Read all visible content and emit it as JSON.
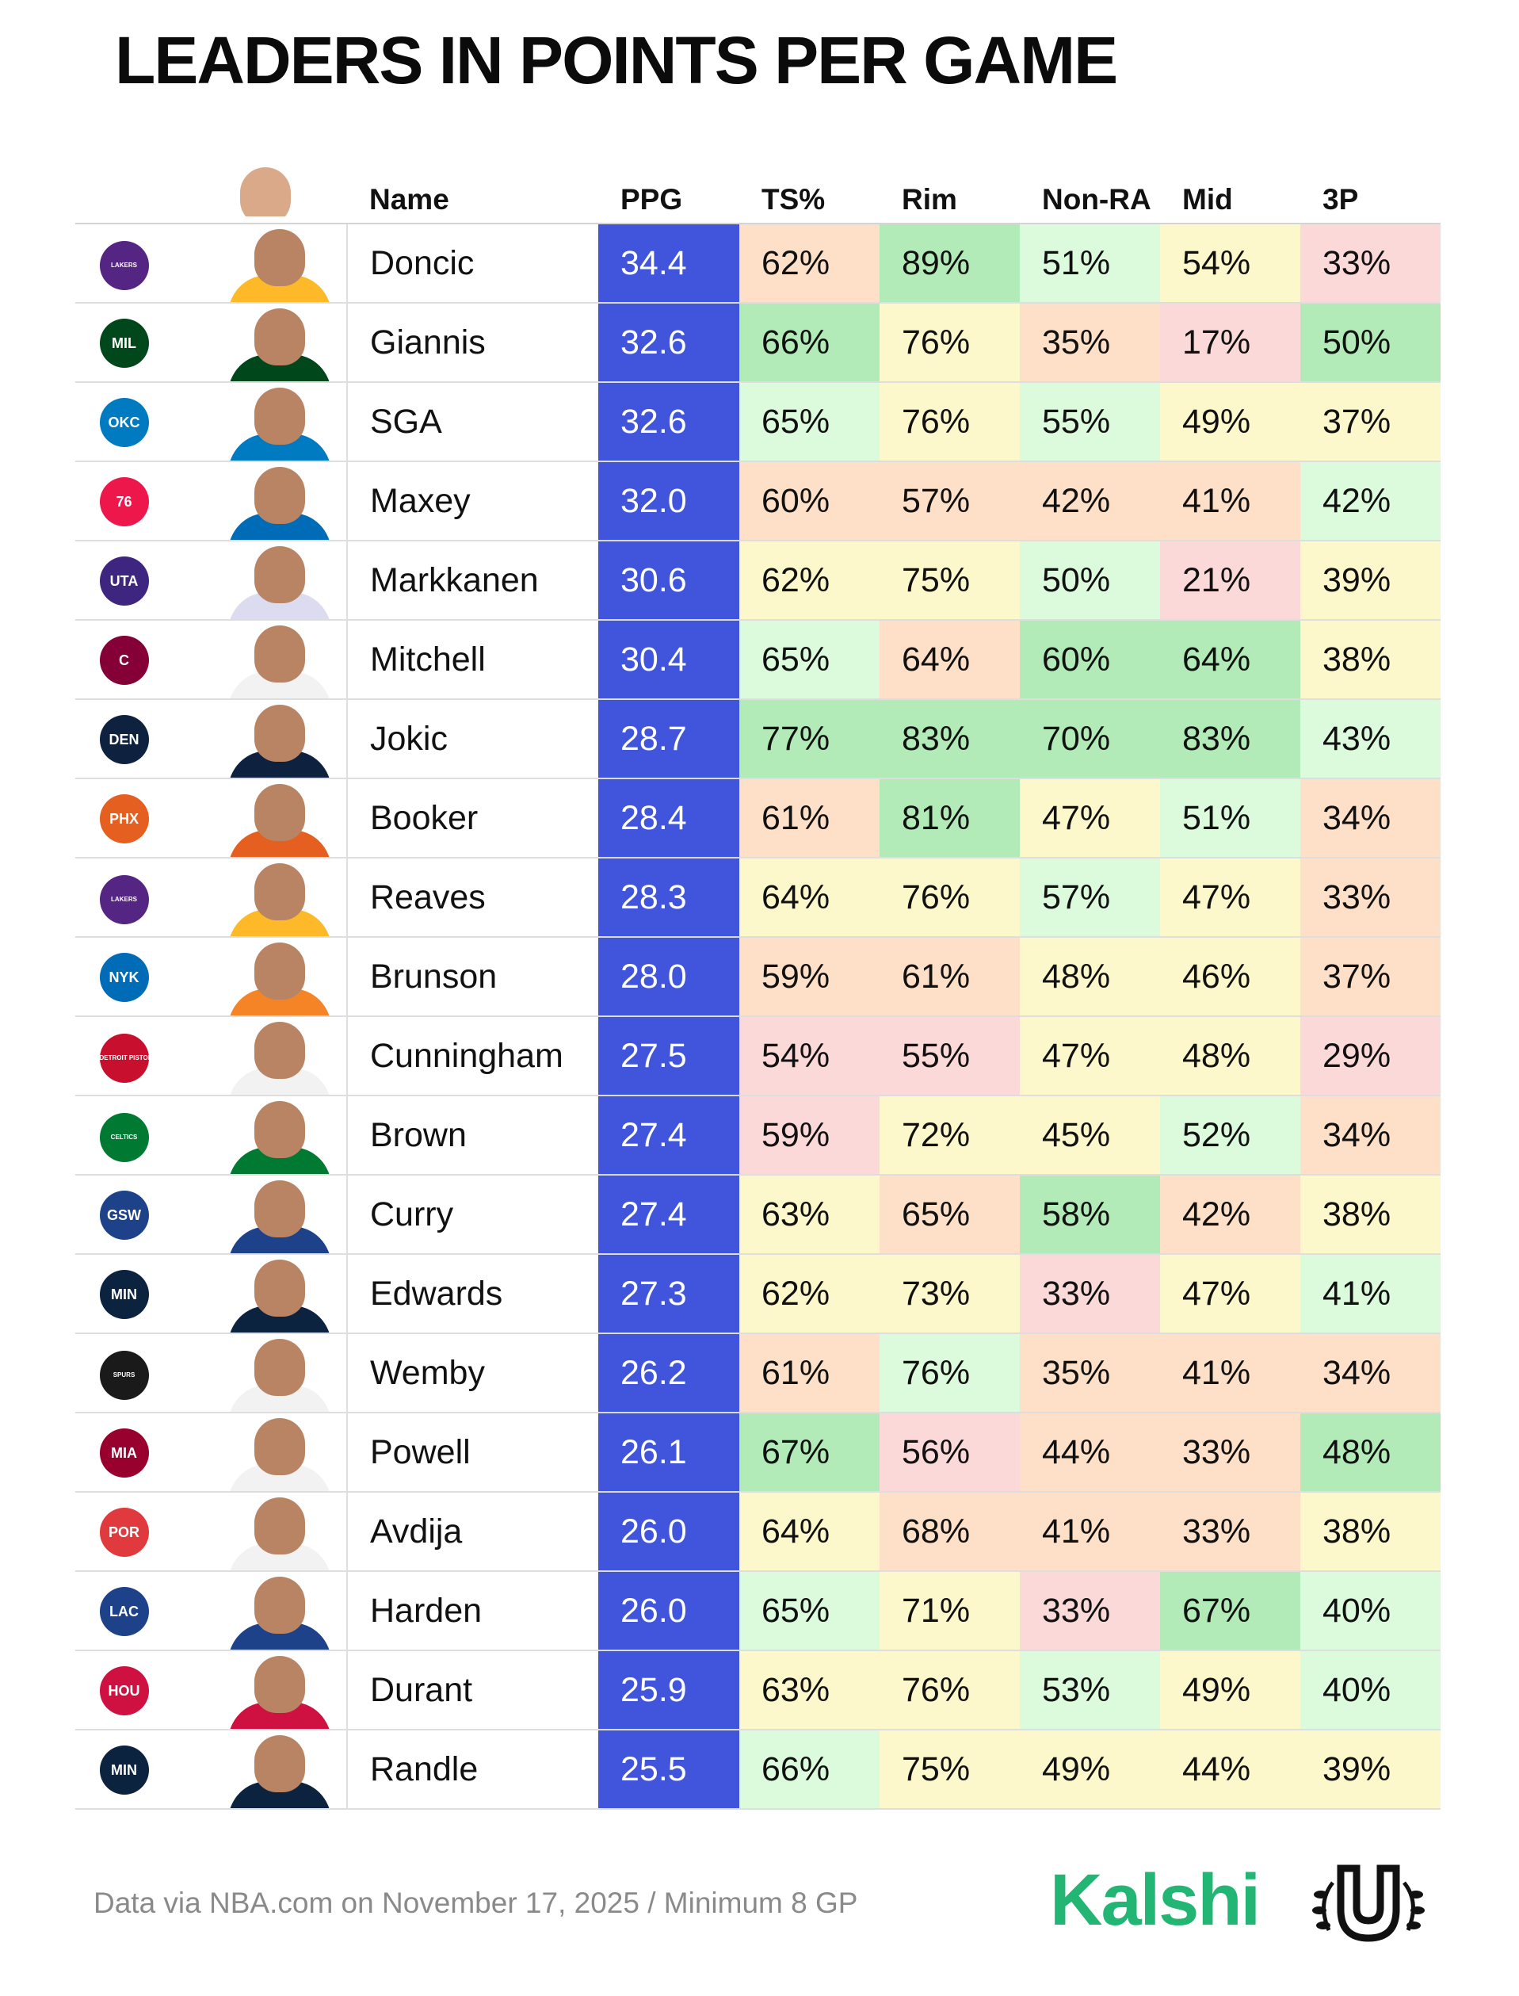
{
  "title": "LEADERS IN POINTS PER GAME",
  "columns": [
    "Name",
    "PPG",
    "TS%",
    "Rim",
    "Non-RA",
    "Mid",
    "3P"
  ],
  "colors": {
    "ppg": "#4055dc",
    "scale": {
      "dark_green": "#b2ebb8",
      "light_green": "#dcfadc",
      "yellow": "#fdf7cc",
      "orange": "#fde0c7",
      "pink": "#fbd9d9"
    },
    "brand": "#22b573"
  },
  "chart_data": {
    "type": "table",
    "title": "LEADERS IN POINTS PER GAME",
    "columns": [
      "Name",
      "PPG",
      "TS%",
      "Rim",
      "Non-RA",
      "Mid",
      "3P"
    ],
    "rows": [
      {
        "team": "Lakers",
        "name": "Doncic",
        "ppg": "34.4",
        "ts": "62%",
        "rim": "89%",
        "nonra": "51%",
        "mid": "54%",
        "three": "33%"
      },
      {
        "team": "Bucks",
        "name": "Giannis",
        "ppg": "32.6",
        "ts": "66%",
        "rim": "76%",
        "nonra": "35%",
        "mid": "17%",
        "three": "50%"
      },
      {
        "team": "Thunder",
        "name": "SGA",
        "ppg": "32.6",
        "ts": "65%",
        "rim": "76%",
        "nonra": "55%",
        "mid": "49%",
        "three": "37%"
      },
      {
        "team": "76ers",
        "name": "Maxey",
        "ppg": "32.0",
        "ts": "60%",
        "rim": "57%",
        "nonra": "42%",
        "mid": "41%",
        "three": "42%"
      },
      {
        "team": "Jazz",
        "name": "Markkanen",
        "ppg": "30.6",
        "ts": "62%",
        "rim": "75%",
        "nonra": "50%",
        "mid": "21%",
        "three": "39%"
      },
      {
        "team": "Cavaliers",
        "name": "Mitchell",
        "ppg": "30.4",
        "ts": "65%",
        "rim": "64%",
        "nonra": "60%",
        "mid": "64%",
        "three": "38%"
      },
      {
        "team": "Nuggets",
        "name": "Jokic",
        "ppg": "28.7",
        "ts": "77%",
        "rim": "83%",
        "nonra": "70%",
        "mid": "83%",
        "three": "43%"
      },
      {
        "team": "Suns",
        "name": "Booker",
        "ppg": "28.4",
        "ts": "61%",
        "rim": "81%",
        "nonra": "47%",
        "mid": "51%",
        "three": "34%"
      },
      {
        "team": "Lakers",
        "name": "Reaves",
        "ppg": "28.3",
        "ts": "64%",
        "rim": "76%",
        "nonra": "57%",
        "mid": "47%",
        "three": "33%"
      },
      {
        "team": "Knicks",
        "name": "Brunson",
        "ppg": "28.0",
        "ts": "59%",
        "rim": "61%",
        "nonra": "48%",
        "mid": "46%",
        "three": "37%"
      },
      {
        "team": "Pistons",
        "name": "Cunningham",
        "ppg": "27.5",
        "ts": "54%",
        "rim": "55%",
        "nonra": "47%",
        "mid": "48%",
        "three": "29%"
      },
      {
        "team": "Celtics",
        "name": "Brown",
        "ppg": "27.4",
        "ts": "59%",
        "rim": "72%",
        "nonra": "45%",
        "mid": "52%",
        "three": "34%"
      },
      {
        "team": "Warriors",
        "name": "Curry",
        "ppg": "27.4",
        "ts": "63%",
        "rim": "65%",
        "nonra": "58%",
        "mid": "42%",
        "three": "38%"
      },
      {
        "team": "Timberwolves",
        "name": "Edwards",
        "ppg": "27.3",
        "ts": "62%",
        "rim": "73%",
        "nonra": "33%",
        "mid": "47%",
        "three": "41%"
      },
      {
        "team": "Spurs",
        "name": "Wemby",
        "ppg": "26.2",
        "ts": "61%",
        "rim": "76%",
        "nonra": "35%",
        "mid": "41%",
        "three": "34%"
      },
      {
        "team": "Heat",
        "name": "Powell",
        "ppg": "26.1",
        "ts": "67%",
        "rim": "56%",
        "nonra": "44%",
        "mid": "33%",
        "three": "48%"
      },
      {
        "team": "Trail Blazers",
        "name": "Avdija",
        "ppg": "26.0",
        "ts": "64%",
        "rim": "68%",
        "nonra": "41%",
        "mid": "33%",
        "three": "38%"
      },
      {
        "team": "Clippers",
        "name": "Harden",
        "ppg": "26.0",
        "ts": "65%",
        "rim": "71%",
        "nonra": "33%",
        "mid": "67%",
        "three": "40%"
      },
      {
        "team": "Rockets",
        "name": "Durant",
        "ppg": "25.9",
        "ts": "63%",
        "rim": "76%",
        "nonra": "53%",
        "mid": "49%",
        "three": "40%"
      },
      {
        "team": "Timberwolves",
        "name": "Randle",
        "ppg": "25.5",
        "ts": "66%",
        "rim": "75%",
        "nonra": "49%",
        "mid": "44%",
        "three": "39%"
      }
    ],
    "cell_colors": [
      [
        "orange",
        "dark_green",
        "light_green",
        "yellow",
        "pink"
      ],
      [
        "dark_green",
        "yellow",
        "orange",
        "pink",
        "dark_green"
      ],
      [
        "light_green",
        "yellow",
        "light_green",
        "yellow",
        "yellow"
      ],
      [
        "orange",
        "orange",
        "orange",
        "orange",
        "light_green"
      ],
      [
        "yellow",
        "yellow",
        "light_green",
        "pink",
        "yellow"
      ],
      [
        "light_green",
        "orange",
        "dark_green",
        "dark_green",
        "yellow"
      ],
      [
        "dark_green",
        "dark_green",
        "dark_green",
        "dark_green",
        "light_green"
      ],
      [
        "orange",
        "dark_green",
        "yellow",
        "light_green",
        "orange"
      ],
      [
        "yellow",
        "yellow",
        "light_green",
        "yellow",
        "orange"
      ],
      [
        "orange",
        "orange",
        "yellow",
        "yellow",
        "orange"
      ],
      [
        "pink",
        "pink",
        "yellow",
        "yellow",
        "pink"
      ],
      [
        "pink",
        "yellow",
        "yellow",
        "light_green",
        "orange"
      ],
      [
        "yellow",
        "orange",
        "dark_green",
        "orange",
        "yellow"
      ],
      [
        "yellow",
        "yellow",
        "pink",
        "yellow",
        "light_green"
      ],
      [
        "orange",
        "light_green",
        "orange",
        "orange",
        "orange"
      ],
      [
        "dark_green",
        "pink",
        "orange",
        "orange",
        "dark_green"
      ],
      [
        "yellow",
        "orange",
        "orange",
        "orange",
        "yellow"
      ],
      [
        "light_green",
        "yellow",
        "pink",
        "dark_green",
        "light_green"
      ],
      [
        "yellow",
        "yellow",
        "light_green",
        "yellow",
        "light_green"
      ],
      [
        "light_green",
        "yellow",
        "yellow",
        "yellow",
        "yellow"
      ]
    ]
  },
  "team_logos": {
    "Lakers": {
      "icon": "lakers-logo-icon",
      "color": "#552583",
      "text": "LAKERS"
    },
    "Bucks": {
      "icon": "bucks-logo-icon",
      "color": "#00471b",
      "text": "MIL"
    },
    "Thunder": {
      "icon": "thunder-logo-icon",
      "color": "#007ac1",
      "text": "OKC"
    },
    "76ers": {
      "icon": "76ers-logo-icon",
      "color": "#ed174c",
      "text": "76"
    },
    "Jazz": {
      "icon": "jazz-logo-icon",
      "color": "#3e2680",
      "text": "UTA"
    },
    "Cavaliers": {
      "icon": "cavaliers-logo-icon",
      "color": "#860038",
      "text": "C"
    },
    "Nuggets": {
      "icon": "nuggets-logo-icon",
      "color": "#0e2240",
      "text": "DEN"
    },
    "Suns": {
      "icon": "suns-logo-icon",
      "color": "#e56020",
      "text": "PHX"
    },
    "Knicks": {
      "icon": "knicks-logo-icon",
      "color": "#006bb6",
      "text": "NYK"
    },
    "Pistons": {
      "icon": "pistons-logo-icon",
      "color": "#c8102e",
      "text": "DETROIT PISTONS"
    },
    "Celtics": {
      "icon": "celtics-logo-icon",
      "color": "#007a33",
      "text": "CELTICS"
    },
    "Warriors": {
      "icon": "warriors-logo-icon",
      "color": "#1d428a",
      "text": "GSW"
    },
    "Timberwolves": {
      "icon": "timberwolves-logo-icon",
      "color": "#0c2340",
      "text": "MIN"
    },
    "Spurs": {
      "icon": "spurs-logo-icon",
      "color": "#1a1a1a",
      "text": "SPURS"
    },
    "Heat": {
      "icon": "heat-logo-icon",
      "color": "#98002e",
      "text": "MIA"
    },
    "Trail Blazers": {
      "icon": "trail-blazers-logo-icon",
      "color": "#e03a3e",
      "text": "POR"
    },
    "Clippers": {
      "icon": "clippers-logo-icon",
      "color": "#1d428a",
      "text": "LAC"
    },
    "Rockets": {
      "icon": "rockets-logo-icon",
      "color": "#ce1141",
      "text": "HOU"
    }
  },
  "jersey_colors": [
    "#fdb927",
    "#00471b",
    "#007ac1",
    "#006bb6",
    "#dcdcf0",
    "#f2f2f2",
    "#0e2240",
    "#e56020",
    "#fdb927",
    "#f58426",
    "#f2f2f2",
    "#007a33",
    "#1d428a",
    "#0c2340",
    "#f2f2f2",
    "#f2f2f2",
    "#f2f2f2",
    "#1d428a",
    "#ce1141",
    "#0c2340"
  ],
  "footnote": "Data via NBA.com on November 17, 2025 / Minimum 8 GP",
  "brand": "Kalshi"
}
